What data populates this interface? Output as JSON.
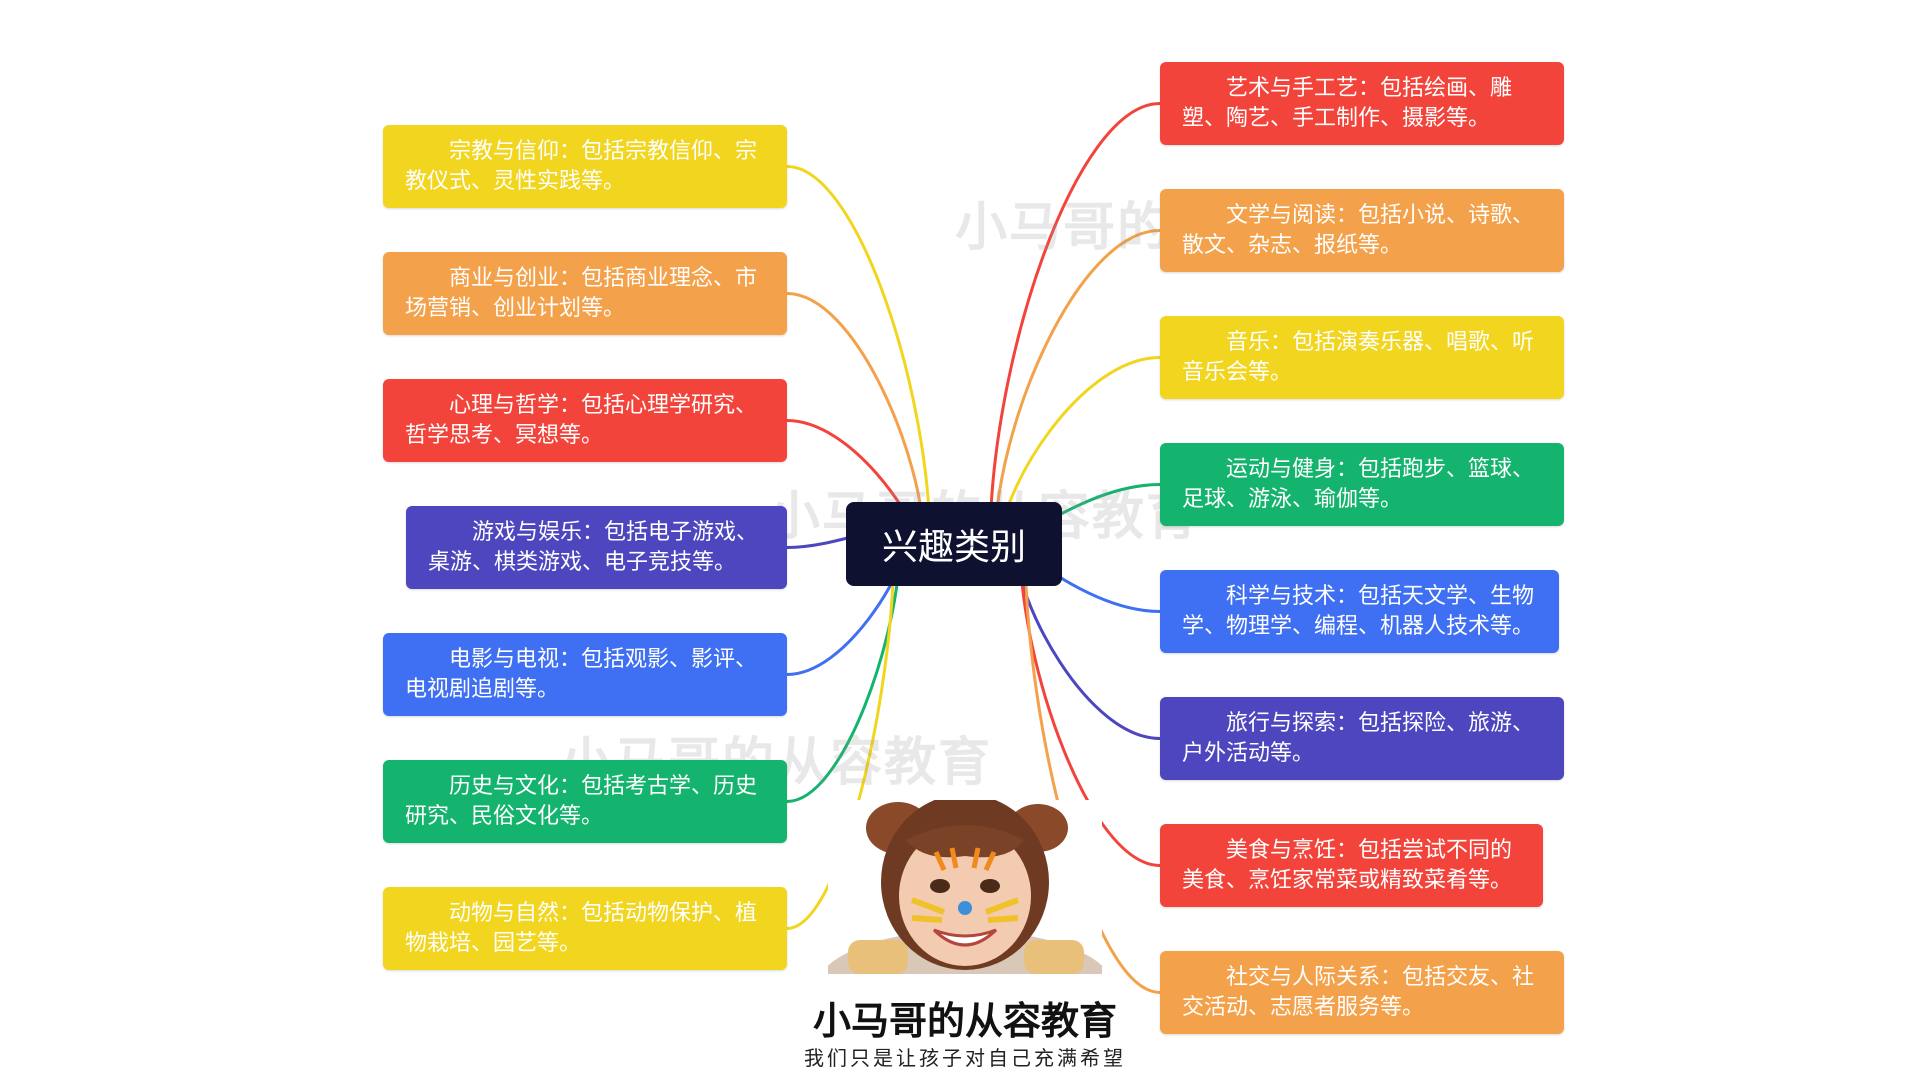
{
  "center": {
    "label": "兴趣类别"
  },
  "watermark": "小马哥的从容教育",
  "left_nodes": [
    {
      "text": "宗教与信仰：包括宗教信仰、宗教仪式、灵性实践等。",
      "color": "#f2d51f"
    },
    {
      "text": "商业与创业：包括商业理念、市场营销、创业计划等。",
      "color": "#f4a14b"
    },
    {
      "text": "心理与哲学：包括心理学研究、哲学思考、冥想等。",
      "color": "#f3443c"
    },
    {
      "text": "游戏与娱乐：包括电子游戏、桌游、棋类游戏、电子竞技等。",
      "color": "#4d46bf"
    },
    {
      "text": "电影与电视：包括观影、影评、电视剧追剧等。",
      "color": "#3f6ff2"
    },
    {
      "text": "历史与文化：包括考古学、历史研究、民俗文化等。",
      "color": "#14b36e"
    },
    {
      "text": "动物与自然：包括动物保护、植物栽培、园艺等。",
      "color": "#f2d51f"
    }
  ],
  "right_nodes": [
    {
      "text": "艺术与手工艺：包括绘画、雕塑、陶艺、手工制作、摄影等。",
      "color": "#f3443c"
    },
    {
      "text": "文学与阅读：包括小说、诗歌、散文、杂志、报纸等。",
      "color": "#f4a14b"
    },
    {
      "text": "音乐：包括演奏乐器、唱歌、听音乐会等。",
      "color": "#f2d51f"
    },
    {
      "text": "运动与健身：包括跑步、篮球、足球、游泳、瑜伽等。",
      "color": "#14b36e"
    },
    {
      "text": "科学与技术：包括天文学、生物学、物理学、编程、机器人技术等。",
      "color": "#3f6ff2"
    },
    {
      "text": "旅行与探索：包括探险、旅游、户外活动等。",
      "color": "#4d46bf"
    },
    {
      "text": "美食与烹饪：包括尝试不同的美食、烹饪家常菜或精致菜肴等。",
      "color": "#f3443c"
    },
    {
      "text": "社交与人际关系：包括交友、社交活动、志愿者服务等。",
      "color": "#f4a14b"
    }
  ],
  "brand": {
    "title": "小马哥的从容教育",
    "slogan": "我们只是让孩子对自己充满希望"
  }
}
